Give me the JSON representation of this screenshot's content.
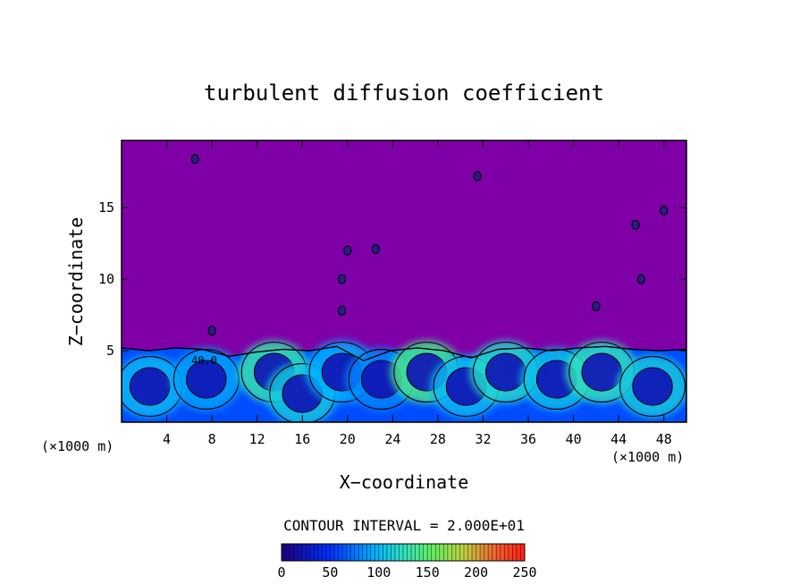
{
  "chart_data": {
    "type": "heatmap",
    "title": "turbulent diffusion coefficient",
    "xlabel": "X−coordinate",
    "ylabel": "Z−coordinate",
    "x_unit": "(×1000 m)",
    "y_unit": "(×1000 m)",
    "xlim": [
      0,
      50
    ],
    "ylim": [
      0,
      19.7
    ],
    "x_ticks": [
      4,
      8,
      12,
      16,
      20,
      24,
      28,
      32,
      36,
      40,
      44,
      48
    ],
    "y_ticks": [
      5,
      10,
      15
    ],
    "contour_interval_text": "CONTOUR INTERVAL = 2.000E+01",
    "contour_label": "40.0",
    "colorbar": {
      "min": 0,
      "max": 250,
      "ticks": [
        0,
        50,
        100,
        150,
        200,
        250
      ]
    },
    "background_value": 0,
    "turbulent_layer": {
      "top_z": [
        5.2,
        5.0,
        5.2,
        5.1,
        4.6,
        4.9,
        5.1,
        5.0,
        5.3,
        4.3,
        5.0,
        5.2,
        5.0,
        4.5,
        5.1,
        5.2,
        5.0,
        5.2,
        5.3,
        5.1,
        5.0,
        5.1
      ],
      "eddies": [
        {
          "x": 2.5,
          "z": 2.5,
          "value": 100
        },
        {
          "x": 7.5,
          "z": 3.0,
          "value": 90
        },
        {
          "x": 13.5,
          "z": 3.5,
          "value": 130
        },
        {
          "x": 16.0,
          "z": 2.0,
          "value": 110
        },
        {
          "x": 19.5,
          "z": 3.5,
          "value": 95
        },
        {
          "x": 23.0,
          "z": 3.0,
          "value": 80
        },
        {
          "x": 27.0,
          "z": 3.5,
          "value": 140
        },
        {
          "x": 30.5,
          "z": 2.5,
          "value": 100
        },
        {
          "x": 34.0,
          "z": 3.5,
          "value": 120
        },
        {
          "x": 38.5,
          "z": 3.0,
          "value": 105
        },
        {
          "x": 42.5,
          "z": 3.5,
          "value": 125
        },
        {
          "x": 47.0,
          "z": 2.5,
          "value": 110
        }
      ],
      "core_value": 20
    },
    "isolated_patches": [
      {
        "x": 6.5,
        "z": 18.4
      },
      {
        "x": 20.0,
        "z": 12.0
      },
      {
        "x": 19.5,
        "z": 10.0
      },
      {
        "x": 19.5,
        "z": 7.8
      },
      {
        "x": 22.5,
        "z": 12.1
      },
      {
        "x": 31.5,
        "z": 17.2
      },
      {
        "x": 45.5,
        "z": 13.8
      },
      {
        "x": 46.0,
        "z": 10.0
      },
      {
        "x": 42.0,
        "z": 8.1
      },
      {
        "x": 48.0,
        "z": 14.8
      },
      {
        "x": 8.0,
        "z": 6.4
      }
    ]
  }
}
